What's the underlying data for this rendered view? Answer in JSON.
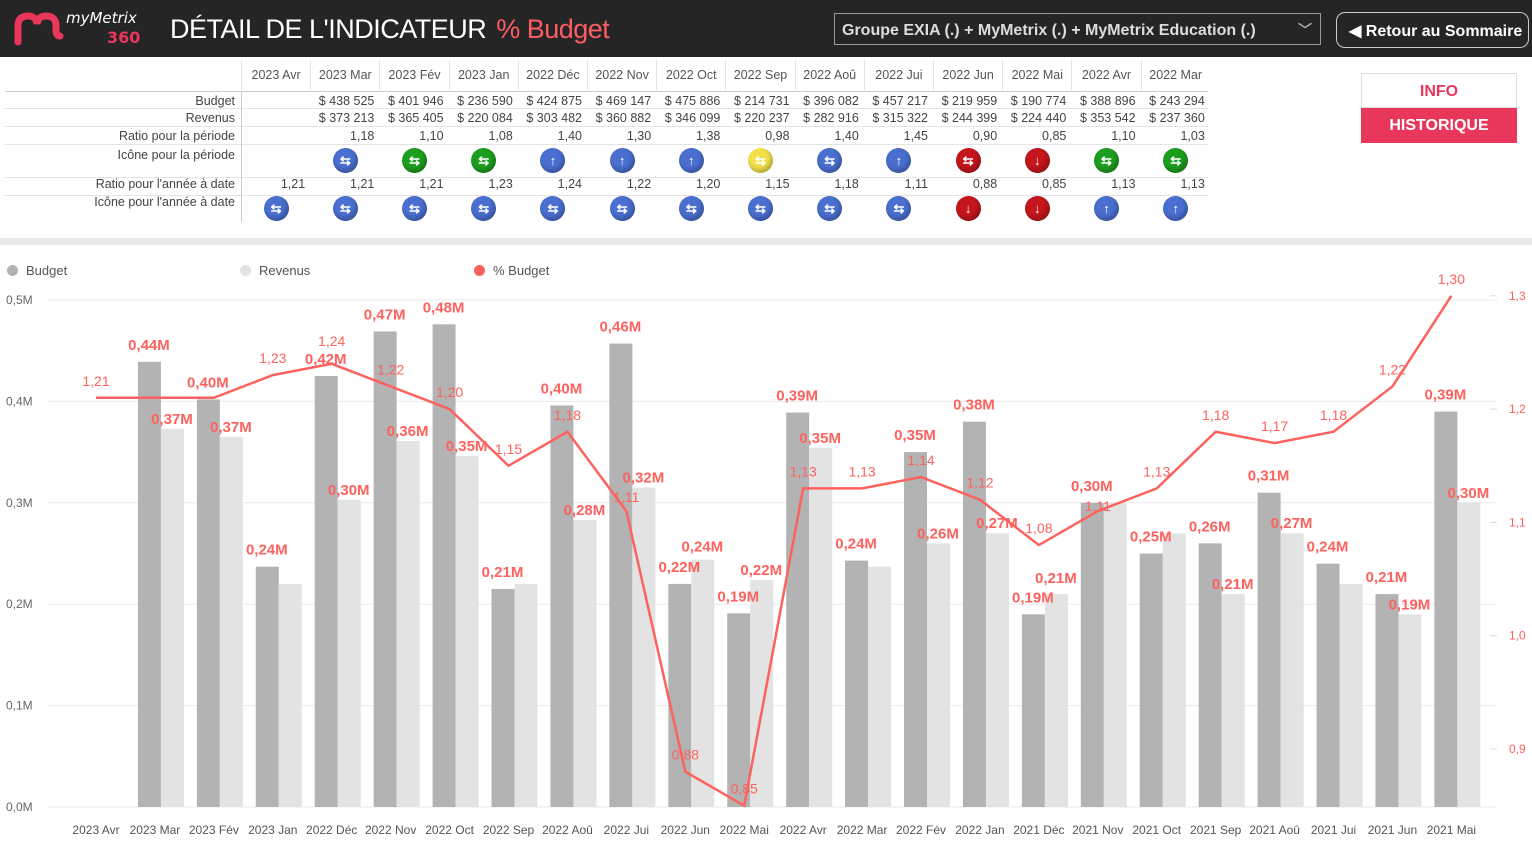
{
  "header": {
    "logo_text": "myMetrix",
    "logo_number": "360",
    "title": "DÉTAIL DE L'INDICATEUR",
    "indicator": "% Budget",
    "selector_value": "Groupe EXIA (.) + MyMetrix (.) + MyMetrix Education (.)",
    "back_label": "Retour au Sommaire"
  },
  "side_buttons": {
    "info": "INFO",
    "history": "HISTORIQUE"
  },
  "colors": {
    "accent": "#e8375a",
    "budget": "#b3b3b3",
    "revenus": "#e3e3e3",
    "line": "#fd625e",
    "blue": "#4a6fd0",
    "green": "#1e9e1e",
    "yellow": "#f2e04a",
    "red": "#c4161c"
  },
  "table": {
    "columns": [
      "2023 Avr",
      "2023 Mar",
      "2023 Fév",
      "2023 Jan",
      "2022 Déc",
      "2022 Nov",
      "2022 Oct",
      "2022 Sep",
      "2022 Aoû",
      "2022 Jui",
      "2022 Jun",
      "2022 Mai",
      "2022 Avr",
      "2022 Mar"
    ],
    "row_labels": {
      "budget": "Budget",
      "revenus": "Revenus",
      "ratio": "Ratio pour la période",
      "icon": "Icône pour la période",
      "ratio_ytd": "Ratio pour l'année à date",
      "icon_ytd": "Icône pour l'année à date"
    },
    "budget": [
      "",
      "$ 438 525",
      "$ 401 946",
      "$ 236 590",
      "$ 424 875",
      "$ 469 147",
      "$ 475 886",
      "$ 214 731",
      "$ 396 082",
      "$ 457 217",
      "$ 219 959",
      "$ 190 774",
      "$ 388 896",
      "$ 243 294"
    ],
    "revenus": [
      "",
      "$ 373 213",
      "$ 365 405",
      "$ 220 084",
      "$ 303 482",
      "$ 360 882",
      "$ 346 099",
      "$ 220 237",
      "$ 282 916",
      "$ 315 322",
      "$ 244 399",
      "$ 224 440",
      "$ 353 542",
      "$ 237 360"
    ],
    "ratio": [
      "",
      "1,18",
      "1,10",
      "1,08",
      "1,40",
      "1,30",
      "1,38",
      "0,98",
      "1,40",
      "1,45",
      "0,90",
      "0,85",
      "1,10",
      "1,03"
    ],
    "icon": [
      null,
      {
        "color": "blue",
        "dir": "sideways"
      },
      {
        "color": "green",
        "dir": "sideways"
      },
      {
        "color": "green",
        "dir": "sideways"
      },
      {
        "color": "blue",
        "dir": "up"
      },
      {
        "color": "blue",
        "dir": "up"
      },
      {
        "color": "blue",
        "dir": "up"
      },
      {
        "color": "yellow",
        "dir": "sideways"
      },
      {
        "color": "blue",
        "dir": "sideways"
      },
      {
        "color": "blue",
        "dir": "up"
      },
      {
        "color": "red",
        "dir": "sideways"
      },
      {
        "color": "red",
        "dir": "down"
      },
      {
        "color": "green",
        "dir": "sideways"
      },
      {
        "color": "green",
        "dir": "sideways"
      }
    ],
    "ratio_ytd": [
      "1,21",
      "1,21",
      "1,21",
      "1,23",
      "1,24",
      "1,22",
      "1,20",
      "1,15",
      "1,18",
      "1,11",
      "0,88",
      "0,85",
      "1,13",
      "1,13"
    ],
    "icon_ytd": [
      {
        "color": "blue",
        "dir": "sideways"
      },
      {
        "color": "blue",
        "dir": "sideways"
      },
      {
        "color": "blue",
        "dir": "sideways"
      },
      {
        "color": "blue",
        "dir": "sideways"
      },
      {
        "color": "blue",
        "dir": "sideways"
      },
      {
        "color": "blue",
        "dir": "sideways"
      },
      {
        "color": "blue",
        "dir": "sideways"
      },
      {
        "color": "blue",
        "dir": "sideways"
      },
      {
        "color": "blue",
        "dir": "sideways"
      },
      {
        "color": "blue",
        "dir": "sideways"
      },
      {
        "color": "red",
        "dir": "down"
      },
      {
        "color": "red",
        "dir": "down"
      },
      {
        "color": "blue",
        "dir": "up"
      },
      {
        "color": "blue",
        "dir": "up"
      }
    ]
  },
  "chart_data": {
    "type": "bar+line",
    "legend": [
      "Budget",
      "Revenus",
      "% Budget"
    ],
    "legend_position": "top-left",
    "categories": [
      "2023 Avr",
      "2023 Mar",
      "2023 Fév",
      "2023 Jan",
      "2022 Déc",
      "2022 Nov",
      "2022 Oct",
      "2022 Sep",
      "2022 Aoû",
      "2022 Jui",
      "2022 Jun",
      "2022 Mai",
      "2022 Avr",
      "2022 Mar",
      "2022 Fév",
      "2022 Jan",
      "2021 Déc",
      "2021 Nov",
      "2021 Oct",
      "2021 Sep",
      "2021 Aoû",
      "2021 Jui",
      "2021 Jun",
      "2021 Mai"
    ],
    "y_left": {
      "ticks": [
        "0,0M",
        "0,1M",
        "0,2M",
        "0,3M",
        "0,4M",
        "0,5M"
      ],
      "range": [
        0,
        0.5
      ]
    },
    "y_right": {
      "ticks": [
        "0,9",
        "1,0",
        "1,1",
        "1,2",
        "1,3"
      ],
      "range": [
        0.85,
        1.3
      ]
    },
    "grid": true,
    "series": [
      {
        "name": "Budget",
        "type": "bar",
        "values": [
          null,
          0.439,
          0.402,
          0.237,
          0.425,
          0.469,
          0.476,
          0.215,
          0.396,
          0.457,
          0.22,
          0.191,
          0.389,
          0.243,
          0.35,
          0.38,
          0.19,
          0.3,
          0.25,
          0.26,
          0.31,
          0.24,
          0.21,
          0.39
        ],
        "labels": [
          null,
          "0,44M",
          "0,40M",
          "0,24M",
          "0,42M",
          "0,47M",
          "0,48M",
          "0,21M",
          "0,40M",
          "0,46M",
          "0,22M",
          "0,19M",
          "0,39M",
          "0,24M",
          "0,35M",
          "0,38M",
          "0,19M",
          "0,30M",
          "0,25M",
          "0,26M",
          "0,31M",
          "0,24M",
          "0,21M",
          "0,39M"
        ]
      },
      {
        "name": "Revenus",
        "type": "bar",
        "values": [
          null,
          0.373,
          0.365,
          0.22,
          0.303,
          0.361,
          0.346,
          0.22,
          0.283,
          0.315,
          0.244,
          0.224,
          0.354,
          0.237,
          0.26,
          0.27,
          0.21,
          0.3,
          0.27,
          0.21,
          0.27,
          0.22,
          0.19,
          0.3
        ],
        "labels": [
          null,
          "0,37M",
          "0,37M",
          null,
          "0,30M",
          "0,36M",
          "0,35M",
          null,
          "0,28M",
          "0,32M",
          "0,24M",
          "0,22M",
          "0,35M",
          null,
          "0,26M",
          "0,27M",
          "0,21M",
          null,
          null,
          "0,21M",
          "0,27M",
          null,
          "0,19M",
          "0,30M"
        ]
      },
      {
        "name": "% Budget",
        "type": "line",
        "values": [
          1.21,
          1.21,
          1.21,
          1.23,
          1.24,
          1.22,
          1.2,
          1.15,
          1.18,
          1.11,
          0.88,
          0.85,
          1.13,
          1.13,
          1.14,
          1.12,
          1.08,
          1.11,
          1.13,
          1.18,
          1.17,
          1.18,
          1.22,
          1.3
        ],
        "labels": [
          "1,21",
          null,
          null,
          "1,23",
          "1,24",
          "1,22",
          "1,20",
          "1,15",
          "1,18",
          "1,11",
          "0,88",
          "0,85",
          "1,13",
          "1,13",
          "1,14",
          "1,12",
          "1,08",
          "1,11",
          "1,13",
          "1,18",
          "1,17",
          "1,18",
          "1,22",
          "1,30"
        ]
      }
    ]
  }
}
